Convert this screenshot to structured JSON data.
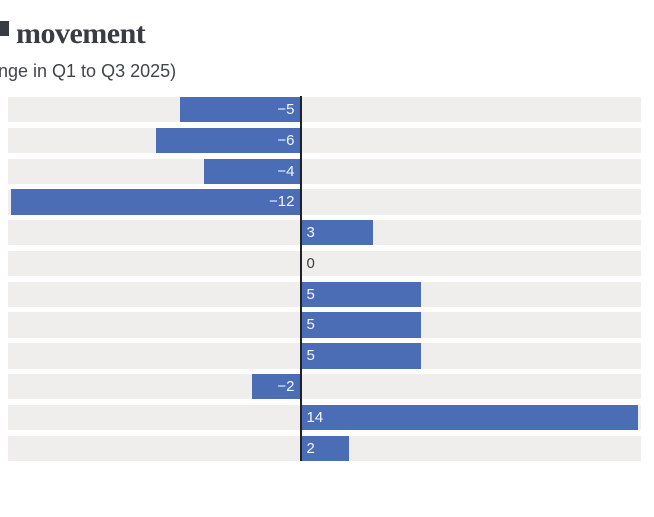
{
  "header": {
    "title_visible": "movement",
    "subtitle_visible": "nge in Q1 to Q3 2025)"
  },
  "colors": {
    "bar": "#4a6db5",
    "row_band": "#efeeec",
    "axis_line": "#202226",
    "label_in_bar": "#f3f5f9",
    "label_zero": "#3a3f45",
    "title_text": "#383d43",
    "subtitle_text": "#40454b",
    "background": "#ffffff"
  },
  "chart_data": {
    "type": "bar",
    "orientation": "horizontal",
    "title": "movement",
    "subtitle": "nge in Q1 to Q3 2025)",
    "values": [
      -5,
      -6,
      -4,
      -12,
      3,
      0,
      5,
      5,
      5,
      -2,
      14,
      2
    ],
    "value_labels": [
      "−5",
      "−6",
      "−4",
      "−12",
      "3",
      "0",
      "5",
      "5",
      "5",
      "−2",
      "14",
      "2"
    ],
    "xlim": [
      -12.13,
      14.12
    ],
    "grid": false,
    "row_bands": true,
    "legend": "none",
    "category_labels_visible": false
  }
}
